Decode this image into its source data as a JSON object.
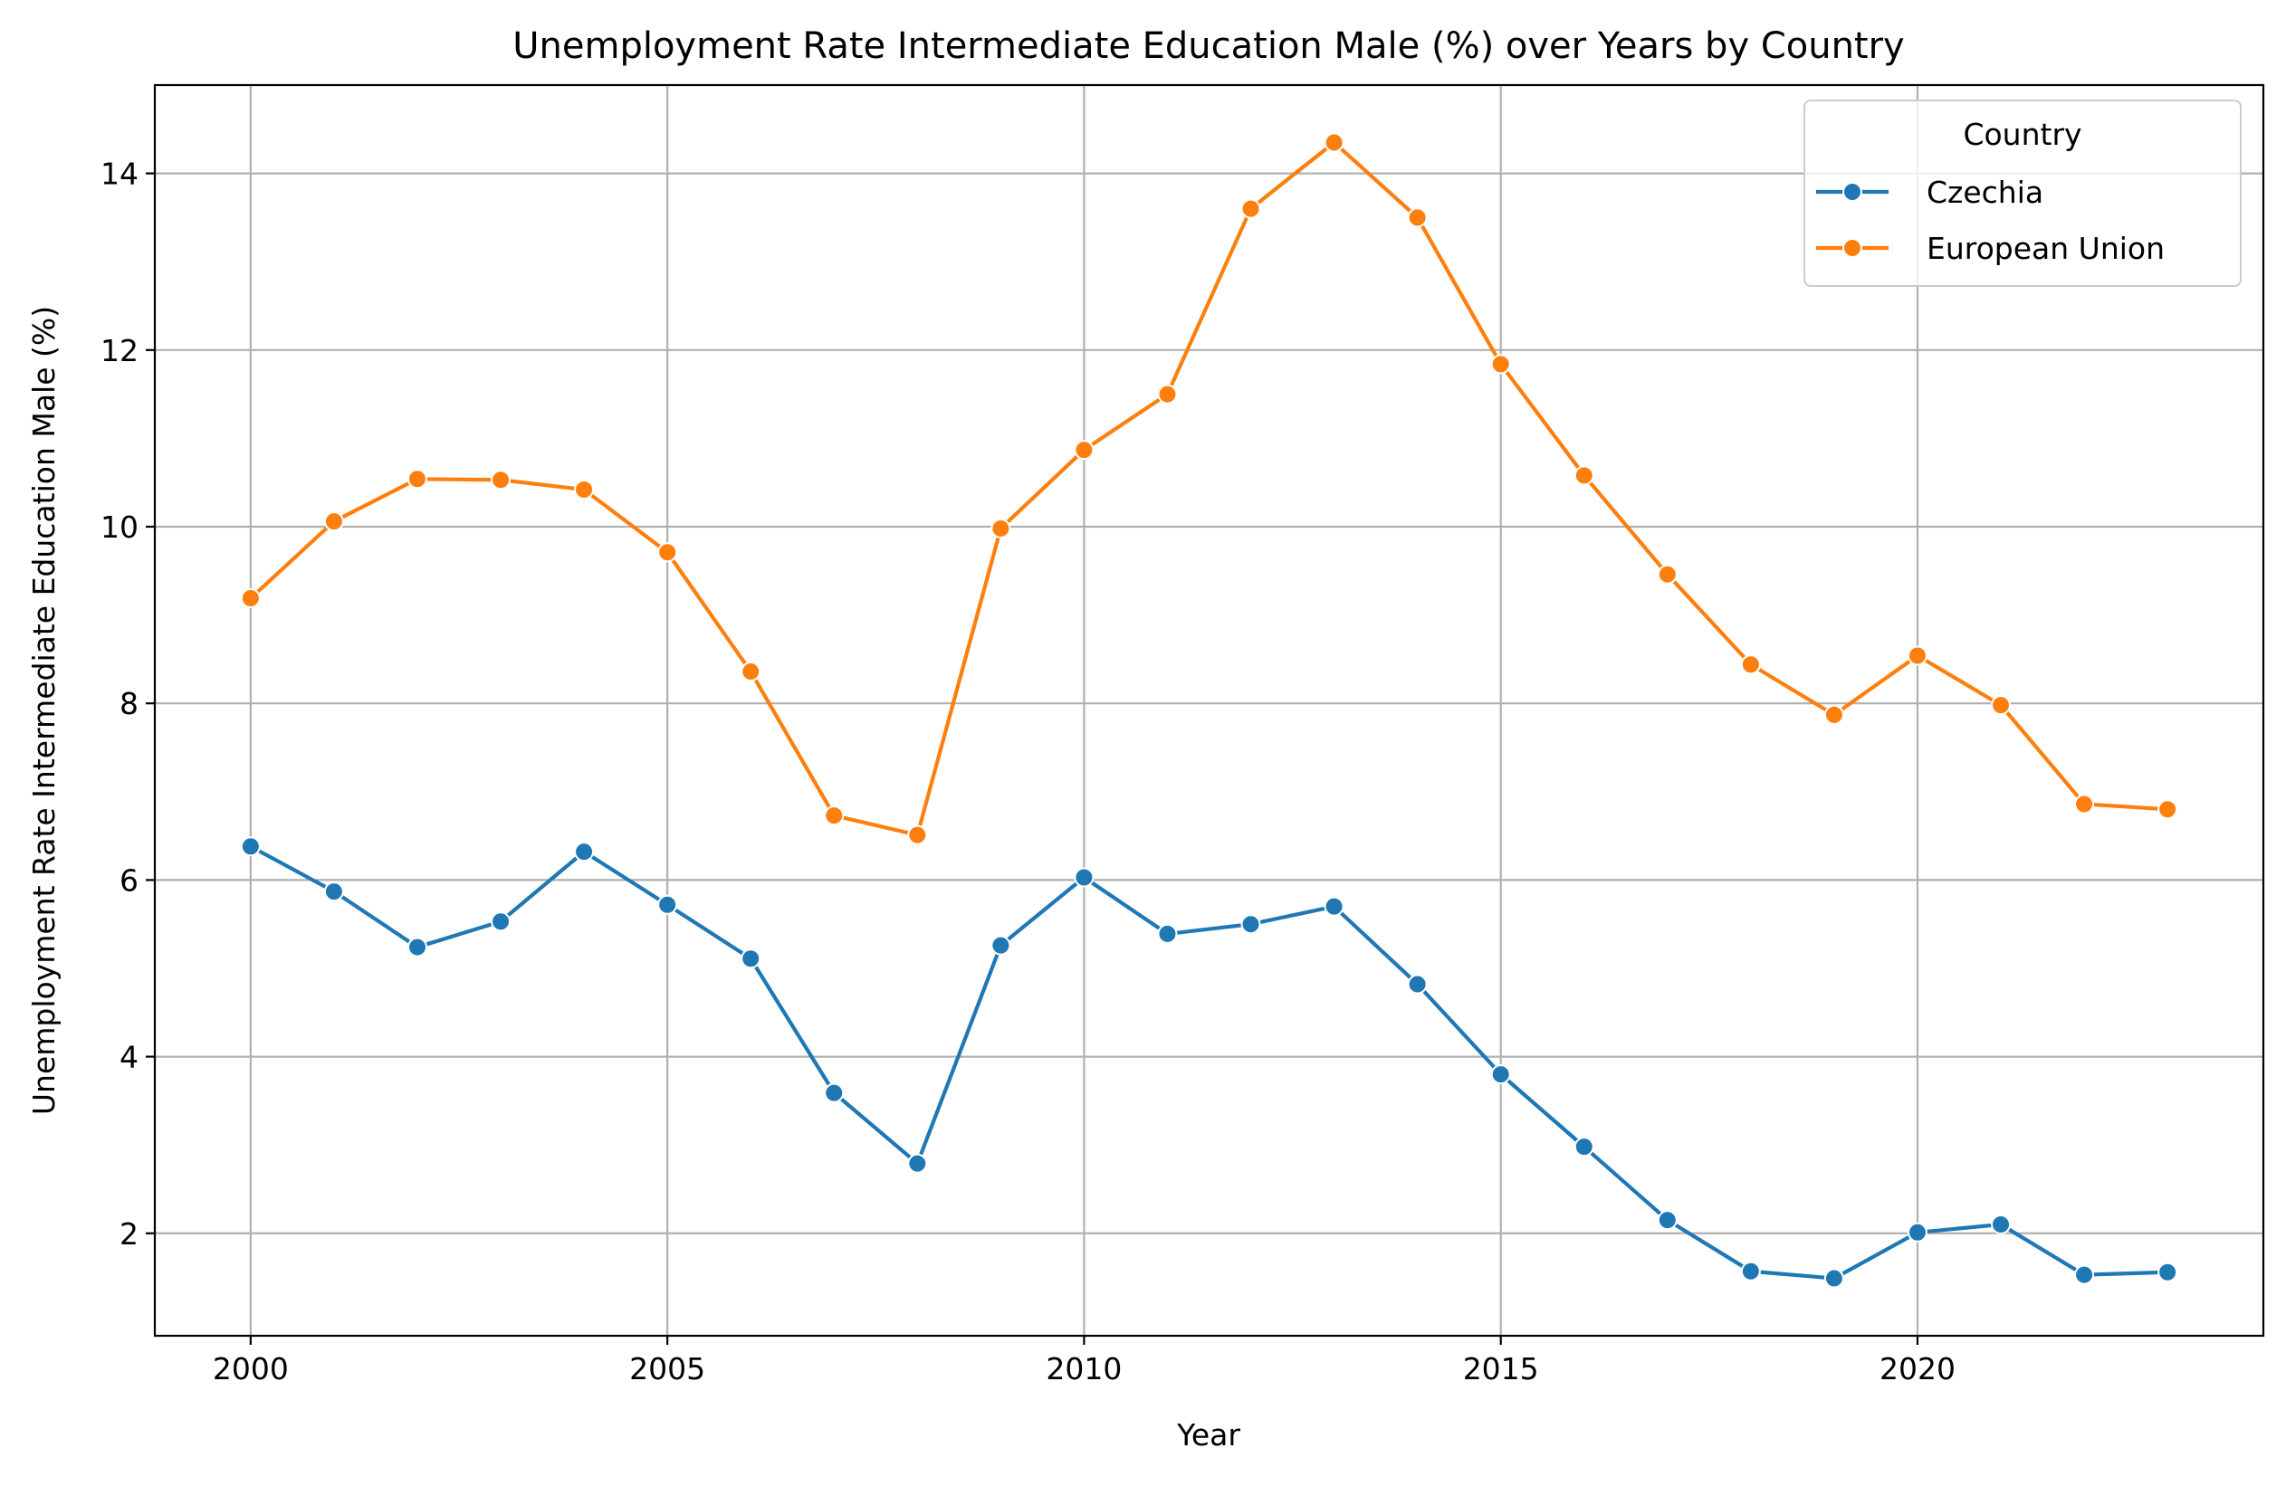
{
  "chart_data": {
    "type": "line",
    "title": "Unemployment Rate Intermediate Education Male (%) over Years by Country",
    "xlabel": "Year",
    "ylabel": "Unemployment Rate Intermediate Education Male (%)",
    "x": [
      2000,
      2001,
      2002,
      2003,
      2004,
      2005,
      2006,
      2007,
      2008,
      2009,
      2010,
      2011,
      2012,
      2013,
      2014,
      2015,
      2016,
      2017,
      2018,
      2019,
      2020,
      2021,
      2022,
      2023
    ],
    "xlim": [
      1998.85,
      2024.15
    ],
    "ylim": [
      0.84,
      15.0
    ],
    "x_ticks": [
      2000,
      2005,
      2010,
      2015,
      2020
    ],
    "x_tick_labels": [
      "2000",
      "2005",
      "2010",
      "2015",
      "2020"
    ],
    "y_ticks": [
      2,
      4,
      6,
      8,
      10,
      12,
      14
    ],
    "y_tick_labels": [
      "2",
      "4",
      "6",
      "8",
      "10",
      "12",
      "14"
    ],
    "grid": true,
    "legend_title": "Country",
    "legend_position": "top-right",
    "series": [
      {
        "name": "Czechia",
        "color": "#1f77b4",
        "values": [
          6.38,
          5.87,
          5.24,
          5.53,
          6.32,
          5.72,
          5.11,
          3.59,
          2.79,
          5.26,
          6.03,
          5.39,
          5.5,
          5.7,
          4.82,
          3.8,
          2.98,
          2.15,
          1.57,
          1.49,
          2.01,
          2.1,
          1.53,
          1.56
        ]
      },
      {
        "name": "European Union",
        "color": "#ff7f0e",
        "values": [
          9.19,
          10.06,
          10.54,
          10.53,
          10.42,
          9.71,
          8.36,
          6.73,
          6.51,
          9.98,
          10.87,
          11.5,
          13.6,
          14.35,
          13.5,
          11.84,
          10.58,
          9.46,
          8.44,
          7.87,
          8.54,
          7.98,
          6.86,
          6.8
        ]
      }
    ]
  }
}
